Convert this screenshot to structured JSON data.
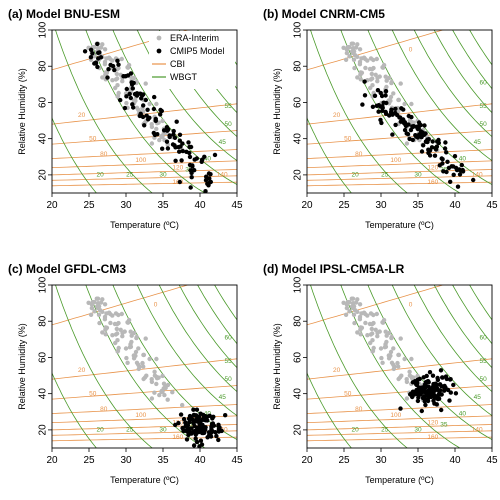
{
  "colors": {
    "era": "#b8b8b8",
    "cmip5": "#000000",
    "cbi": "#e8934a",
    "wbgt": "#4a9a2a",
    "axis": "#000000"
  },
  "legend": {
    "placement": "top-right of panel (a)",
    "entries": [
      {
        "label": "ERA-Interim",
        "kind": "point",
        "color": "#b8b8b8"
      },
      {
        "label": "CMIP5 Model",
        "kind": "point",
        "color": "#000000"
      },
      {
        "label": "CBI",
        "kind": "line",
        "color": "#e8934a"
      },
      {
        "label": "WBGT",
        "kind": "line",
        "color": "#4a9a2a"
      }
    ]
  },
  "chart_data": [
    {
      "type": "scatter",
      "title": "(a) Model BNU-ESM",
      "xlabel": "Temperature (ºC)",
      "ylabel": "Relative Humidity (%)",
      "xlim": [
        20,
        45
      ],
      "ylim": [
        10,
        100
      ],
      "xticks": [
        20,
        25,
        30,
        35,
        40,
        45
      ],
      "yticks": [
        20,
        40,
        60,
        80,
        100
      ],
      "cbi_levels": [
        0,
        20,
        50,
        80,
        100,
        120,
        140,
        160
      ],
      "wbgt_levels": [
        20,
        25,
        30,
        35,
        40,
        45,
        50,
        55,
        60
      ],
      "series": [
        {
          "name": "ERA-Interim",
          "center": [
            29.5,
            66
          ],
          "count": 110
        },
        {
          "name": "CMIP5 Model",
          "center": [
            32.5,
            58
          ],
          "count": 120
        }
      ]
    },
    {
      "type": "scatter",
      "title": "(b) Model CNRM-CM5",
      "xlabel": "Temperature (ºC)",
      "ylabel": "Relative Humidity (%)",
      "xlim": [
        20,
        45
      ],
      "ylim": [
        10,
        100
      ],
      "xticks": [
        20,
        25,
        30,
        35,
        40,
        45
      ],
      "yticks": [
        20,
        40,
        60,
        80,
        100
      ],
      "cbi_levels": [
        0,
        20,
        50,
        80,
        100,
        120,
        140,
        160
      ],
      "wbgt_levels": [
        20,
        25,
        30,
        35,
        40,
        45,
        50,
        55,
        60
      ],
      "series": [
        {
          "name": "ERA-Interim",
          "center": [
            29.5,
            66
          ],
          "count": 110
        },
        {
          "name": "CMIP5 Model",
          "center": [
            35.5,
            38
          ],
          "count": 120
        }
      ]
    },
    {
      "type": "scatter",
      "title": "(c) Model GFDL-CM3",
      "xlabel": "Temperature (ºC)",
      "ylabel": "Relative Humidity (%)",
      "xlim": [
        20,
        45
      ],
      "ylim": [
        10,
        100
      ],
      "xticks": [
        20,
        25,
        30,
        35,
        40,
        45
      ],
      "yticks": [
        20,
        40,
        60,
        80,
        100
      ],
      "cbi_levels": [
        0,
        20,
        50,
        80,
        100,
        120,
        140,
        160
      ],
      "wbgt_levels": [
        20,
        25,
        30,
        35,
        40,
        45,
        50,
        55,
        60
      ],
      "series": [
        {
          "name": "ERA-Interim",
          "center": [
            29.5,
            66
          ],
          "count": 110
        },
        {
          "name": "CMIP5 Model",
          "center": [
            40,
            23
          ],
          "count": 110
        }
      ]
    },
    {
      "type": "scatter",
      "title": "(d) Model IPSL-CM5A-LR",
      "xlabel": "Temperature (ºC)",
      "ylabel": "Relative Humidity (%)",
      "xlim": [
        20,
        45
      ],
      "ylim": [
        10,
        100
      ],
      "xticks": [
        20,
        25,
        30,
        35,
        40,
        45
      ],
      "yticks": [
        20,
        40,
        60,
        80,
        100
      ],
      "cbi_levels": [
        0,
        20,
        50,
        80,
        100,
        120,
        140,
        160
      ],
      "wbgt_levels": [
        20,
        25,
        30,
        35,
        40,
        45,
        50,
        55,
        60
      ],
      "series": [
        {
          "name": "ERA-Interim",
          "center": [
            29.5,
            66
          ],
          "count": 110
        },
        {
          "name": "CMIP5 Model",
          "center": [
            36.5,
            42
          ],
          "count": 120
        }
      ]
    }
  ]
}
